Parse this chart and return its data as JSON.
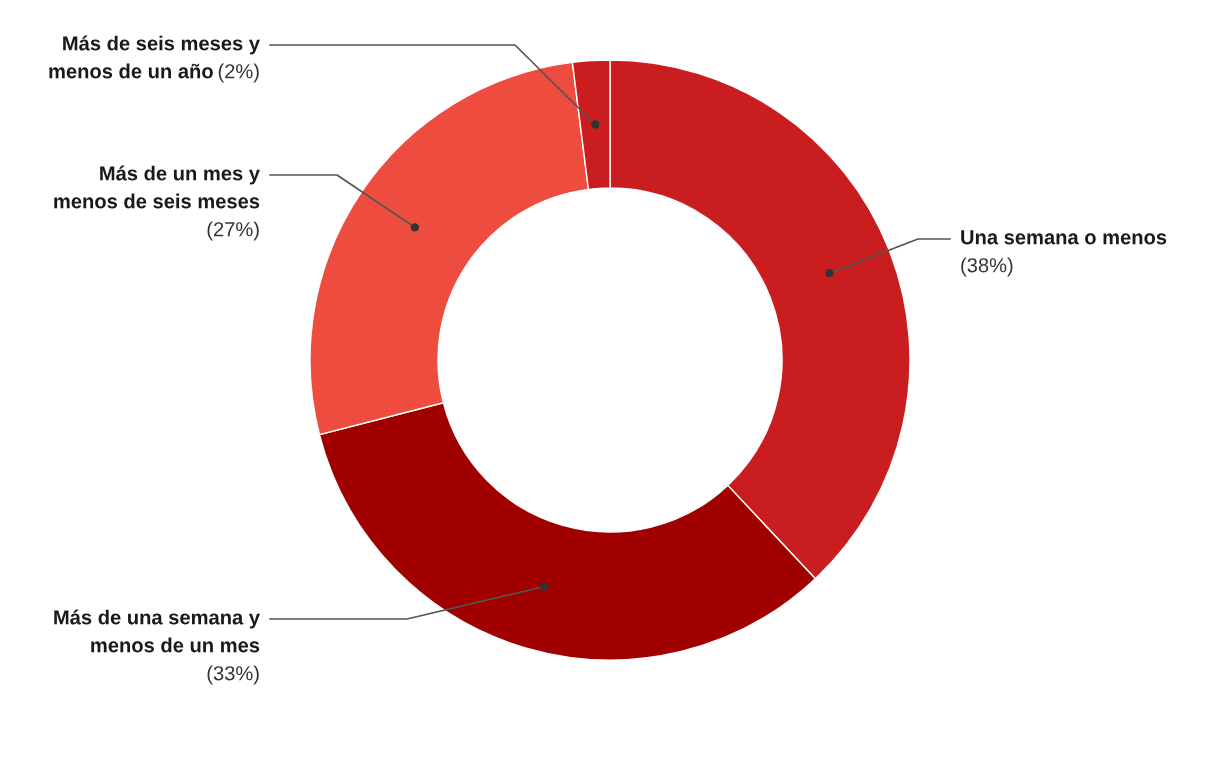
{
  "chart_data": {
    "type": "donut",
    "categories": [
      "Una semana o menos",
      "Más de una semana y\nmenos de un mes",
      "Más de un mes y\nmenos de seis meses",
      "Más de seis meses y\nmenos de un año"
    ],
    "values": [
      38,
      33,
      27,
      2
    ],
    "value_labels": [
      "(38%)",
      "(33%)",
      "(27%)",
      "(2%)"
    ],
    "colors": [
      "#c91d1f",
      "#a10000",
      "#ee4c3e",
      "#c91d1f"
    ],
    "legend": false
  }
}
